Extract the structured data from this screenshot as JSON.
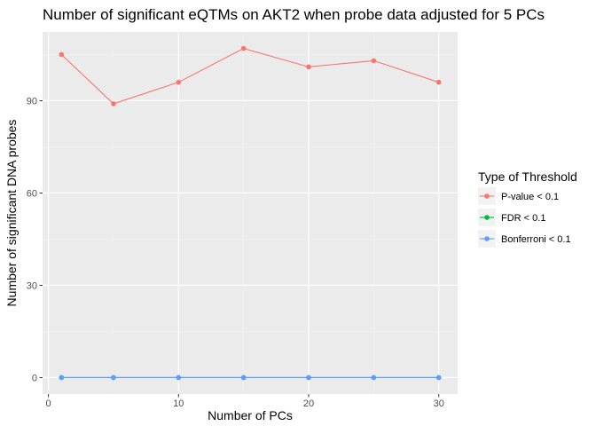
{
  "chart_data": {
    "type": "line",
    "title": "Number of significant eQTMs on AKT2 when probe data adjusted for 5 PCs",
    "xlabel": "Number of PCs",
    "ylabel": "Number of significant DNA probes",
    "x": [
      1,
      5,
      10,
      15,
      20,
      25,
      30
    ],
    "xlim": [
      -0.45,
      31.45
    ],
    "ylim": [
      -5.35,
      112.35
    ],
    "xticks": [
      0,
      10,
      20,
      30
    ],
    "yticks": [
      0,
      30,
      60,
      90
    ],
    "grid": true,
    "legend": {
      "title": "Type of Threshold",
      "position": "right"
    },
    "series": [
      {
        "name": "P-value < 0.1",
        "color": "#F8766D",
        "values": [
          105,
          89,
          96,
          107,
          101,
          103,
          96
        ]
      },
      {
        "name": "FDR < 0.1",
        "color": "#00BA38",
        "values": [
          0,
          0,
          0,
          0,
          0,
          0,
          0
        ]
      },
      {
        "name": "Bonferroni < 0.1",
        "color": "#619CFF",
        "values": [
          0,
          0,
          0,
          0,
          0,
          0,
          0
        ]
      }
    ]
  }
}
